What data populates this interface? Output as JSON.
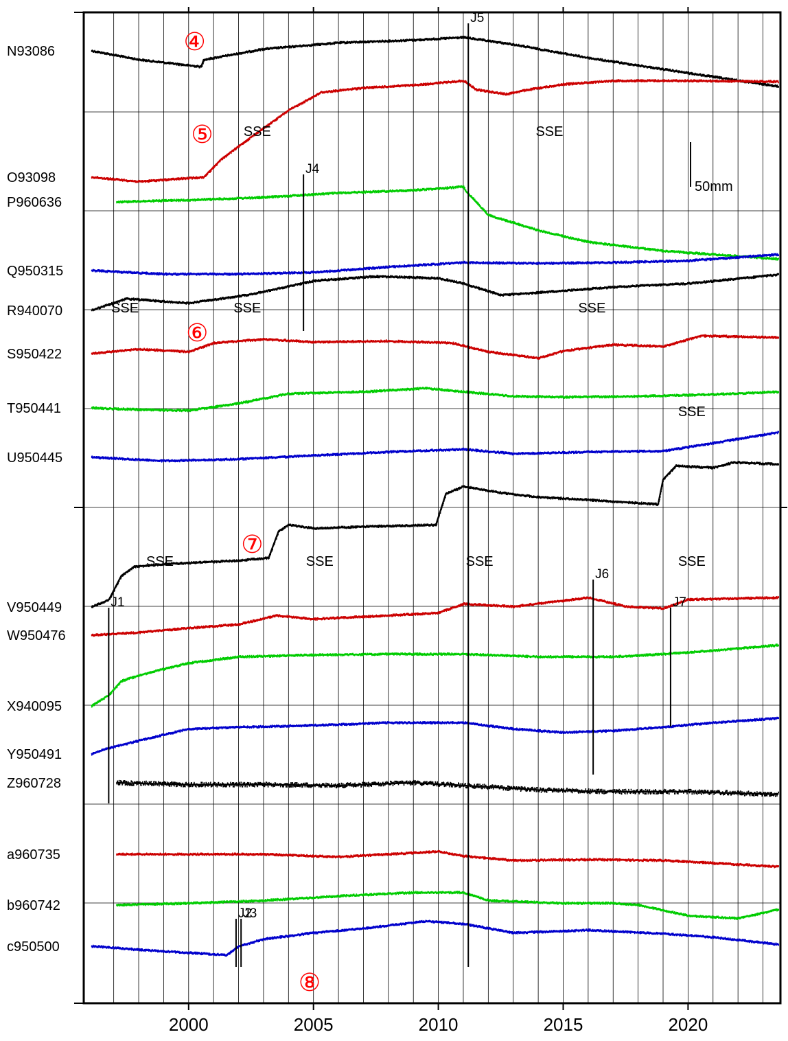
{
  "chart_data": {
    "type": "line",
    "title": "",
    "xlabel": "",
    "ylabel": "",
    "x_range": [
      1995.8,
      2023.7
    ],
    "x_ticks": [
      2000,
      2005,
      2010,
      2015,
      2020
    ],
    "x_tick_labels": [
      "2000",
      "2005",
      "2010",
      "2015",
      "2020"
    ],
    "scale_bar_label": "50mm",
    "scale_bar_value_mm": 50,
    "grid": true,
    "colors": {
      "black": "#000000",
      "red": "#cc0000",
      "green": "#00cc00",
      "blue": "#0000cc",
      "marker": "#ff0000"
    },
    "region_markers": [
      {
        "label": "④",
        "x": 1999.8,
        "near_series": "N93086"
      },
      {
        "label": "⑤",
        "x": 2000.1,
        "near_series": "O93098"
      },
      {
        "label": "⑥",
        "x": 1999.9,
        "near_series": "S950422"
      },
      {
        "label": "⑦",
        "x": 2002.1,
        "near_series": "V950449"
      },
      {
        "label": "⑧",
        "x": 2004.4,
        "near_series": "c950500"
      }
    ],
    "series": [
      {
        "name": "N93086",
        "color": "black",
        "x": [
          1996.1,
          1998.0,
          2000.5,
          2000.6,
          2003.0,
          2006.0,
          2009.0,
          2011.0,
          2013.0,
          2016.0,
          2020.0,
          2023.6
        ],
        "y": [
          0,
          -10,
          -18,
          -10,
          2,
          9,
          12,
          15,
          7,
          -8,
          -25,
          -40
        ]
      },
      {
        "name": "O93098",
        "color": "red",
        "x": [
          1996.1,
          1998.0,
          2000.6,
          2001.3,
          2002.5,
          2004.0,
          2005.3,
          2007.0,
          2009.0,
          2011.0,
          2011.5,
          2012.7,
          2013.6,
          2015.0,
          2017.0,
          2020.0,
          2023.6
        ],
        "y": [
          0,
          -5,
          0,
          20,
          45,
          75,
          95,
          100,
          103,
          108,
          98,
          93,
          98,
          104,
          108,
          108,
          107
        ]
      },
      {
        "name": "P960636",
        "color": "green",
        "x": [
          1997.1,
          2000.0,
          2003.0,
          2006.0,
          2009.0,
          2011.0,
          2011.1,
          2012.0,
          2014.0,
          2016.0,
          2019.0,
          2023.6
        ],
        "y": [
          0,
          2,
          5,
          10,
          13,
          17,
          12,
          -15,
          -32,
          -45,
          -55,
          -64
        ]
      },
      {
        "name": "Q950315",
        "color": "blue",
        "x": [
          1996.1,
          1999.0,
          2002.0,
          2005.0,
          2008.0,
          2011.0,
          2014.0,
          2017.0,
          2020.0,
          2023.6
        ],
        "y": [
          0,
          -4,
          -4,
          -2,
          4,
          9,
          8,
          9,
          11,
          18
        ]
      },
      {
        "name": "R940070",
        "color": "black",
        "x": [
          1996.1,
          1997.5,
          2000.0,
          2002.5,
          2005.0,
          2007.5,
          2010.0,
          2011.0,
          2012.5,
          2014.0,
          2017.0,
          2020.0,
          2023.6
        ],
        "y": [
          0,
          13,
          8,
          18,
          33,
          38,
          36,
          30,
          17,
          20,
          26,
          30,
          40
        ]
      },
      {
        "name": "S950422",
        "color": "red",
        "x": [
          1996.1,
          1998.0,
          2000.0,
          2001.0,
          2003.0,
          2005.0,
          2008.0,
          2010.5,
          2012.0,
          2014.0,
          2015.0,
          2017.0,
          2019.0,
          2020.5,
          2023.6
        ],
        "y": [
          0,
          5,
          2,
          12,
          16,
          13,
          14,
          12,
          2,
          -5,
          3,
          10,
          8,
          20,
          18
        ]
      },
      {
        "name": "T950441",
        "color": "green",
        "x": [
          1996.1,
          1998.0,
          2000.0,
          2002.0,
          2004.0,
          2007.0,
          2009.5,
          2011.0,
          2013.0,
          2015.0,
          2018.0,
          2021.0,
          2023.6
        ],
        "y": [
          0,
          -2,
          -3,
          5,
          16,
          18,
          22,
          18,
          13,
          12,
          13,
          15,
          18
        ]
      },
      {
        "name": "U950445",
        "color": "blue",
        "x": [
          1996.1,
          1999.0,
          2002.0,
          2005.0,
          2008.0,
          2011.0,
          2013.0,
          2016.0,
          2019.0,
          2021.0,
          2023.6
        ],
        "y": [
          0,
          -4,
          -2,
          2,
          6,
          9,
          4,
          6,
          7,
          16,
          28
        ]
      },
      {
        "name": "V950449",
        "color": "black",
        "x": [
          1996.1,
          1996.8,
          1997.3,
          1997.8,
          1999.0,
          2002.0,
          2003.2,
          2003.6,
          2004.0,
          2005.0,
          2007.0,
          2009.9,
          2010.3,
          2011.0,
          2012.5,
          2014.0,
          2016.0,
          2018.8,
          2019.0,
          2019.5,
          2021.0,
          2021.8,
          2023.6
        ],
        "y": [
          0,
          8,
          35,
          45,
          48,
          52,
          55,
          85,
          92,
          88,
          90,
          92,
          127,
          135,
          128,
          123,
          120,
          115,
          143,
          158,
          156,
          162,
          160
        ]
      },
      {
        "name": "W950476",
        "color": "red",
        "x": [
          1996.1,
          1998.0,
          2000.0,
          2002.0,
          2003.5,
          2005.0,
          2008.0,
          2010.0,
          2011.0,
          2013.0,
          2016.0,
          2017.5,
          2019.0,
          2020.0,
          2023.6
        ],
        "y": [
          0,
          3,
          8,
          12,
          22,
          18,
          22,
          25,
          35,
          32,
          42,
          32,
          30,
          40,
          42
        ]
      },
      {
        "name": "X940095",
        "color": "green",
        "x": [
          1996.1,
          1996.8,
          1997.3,
          1998.5,
          2000.0,
          2002.0,
          2005.0,
          2008.0,
          2011.0,
          2014.0,
          2017.0,
          2019.0,
          2021.0,
          2023.6
        ],
        "y": [
          0,
          12,
          28,
          38,
          48,
          55,
          57,
          58,
          58,
          55,
          55,
          58,
          62,
          68
        ]
      },
      {
        "name": "Y950491",
        "color": "blue",
        "x": [
          1996.1,
          1996.6,
          1998.0,
          2000.0,
          2002.0,
          2005.0,
          2008.0,
          2011.0,
          2013.0,
          2015.0,
          2017.0,
          2019.0,
          2021.0,
          2023.6
        ],
        "y": [
          0,
          5,
          15,
          28,
          30,
          32,
          35,
          35,
          28,
          24,
          26,
          30,
          35,
          40
        ]
      },
      {
        "name": "Z960728",
        "color": "black",
        "x": [
          1997.1,
          2000.0,
          2003.0,
          2006.0,
          2009.0,
          2011.0,
          2014.0,
          2017.0,
          2020.0,
          2023.6
        ],
        "y": [
          0,
          -2,
          -2,
          -3,
          0,
          -3,
          -8,
          -10,
          -10,
          -13
        ]
      },
      {
        "name": "a960735",
        "color": "red",
        "x": [
          1997.1,
          2000.0,
          2003.0,
          2006.0,
          2008.0,
          2010.0,
          2011.0,
          2013.0,
          2016.0,
          2019.0,
          2021.0,
          2023.6
        ],
        "y": [
          0,
          0,
          0,
          -3,
          0,
          3,
          -2,
          -7,
          -6,
          -7,
          -10,
          -14
        ]
      },
      {
        "name": "b960742",
        "color": "green",
        "x": [
          1997.1,
          2000.0,
          2003.0,
          2006.0,
          2009.0,
          2011.0,
          2012.0,
          2015.0,
          2017.0,
          2018.0,
          2020.0,
          2022.0,
          2023.6
        ],
        "y": [
          0,
          2,
          5,
          10,
          14,
          14,
          5,
          2,
          2,
          0,
          -12,
          -15,
          -5
        ]
      },
      {
        "name": "c950500",
        "color": "blue",
        "x": [
          1996.1,
          1998.0,
          2001.5,
          2002.0,
          2003.0,
          2005.0,
          2007.0,
          2009.5,
          2011.0,
          2013.0,
          2016.0,
          2019.0,
          2021.0,
          2023.6
        ],
        "y": [
          0,
          -4,
          -10,
          0,
          8,
          15,
          20,
          28,
          25,
          15,
          18,
          14,
          10,
          2
        ]
      }
    ],
    "event_markers": [
      {
        "label": "J1",
        "x": 1996.8,
        "from_series": "W950476",
        "to_series": "Z960728"
      },
      {
        "label": "J2",
        "x": 2001.9,
        "from_series": "c950500",
        "to_series": "c950500"
      },
      {
        "label": "J3",
        "x": 2002.1,
        "from_series": "c950500",
        "to_series": "c950500"
      },
      {
        "label": "J4",
        "x": 2004.6,
        "from_series": "P960636",
        "to_series": "R940070"
      },
      {
        "label": "J5",
        "x": 2011.2,
        "from_series": "N93086",
        "to_series": "c950500"
      },
      {
        "label": "J6",
        "x": 2016.2,
        "from_series": "V950449",
        "to_series": "Y950491"
      },
      {
        "label": "J7",
        "x": 2019.3,
        "from_series": "W950476",
        "to_series": "X940095"
      }
    ],
    "annotations": [
      {
        "text": "SSE",
        "x": 2002.2,
        "near_series": "O93098"
      },
      {
        "text": "SSE",
        "x": 2013.9,
        "near_series": "O93098"
      },
      {
        "text": "SSE",
        "x": 1996.9,
        "near_series": "S950422"
      },
      {
        "text": "SSE",
        "x": 2001.8,
        "near_series": "S950422"
      },
      {
        "text": "SSE",
        "x": 2015.6,
        "near_series": "S950422"
      },
      {
        "text": "SSE",
        "x": 2019.6,
        "near_series": "U950445"
      },
      {
        "text": "SSE",
        "x": 1998.3,
        "near_series": "V950449"
      },
      {
        "text": "SSE",
        "x": 2004.7,
        "near_series": "V950449"
      },
      {
        "text": "SSE",
        "x": 2011.1,
        "near_series": "V950449"
      },
      {
        "text": "SSE",
        "x": 2019.6,
        "near_series": "V950449"
      }
    ]
  }
}
